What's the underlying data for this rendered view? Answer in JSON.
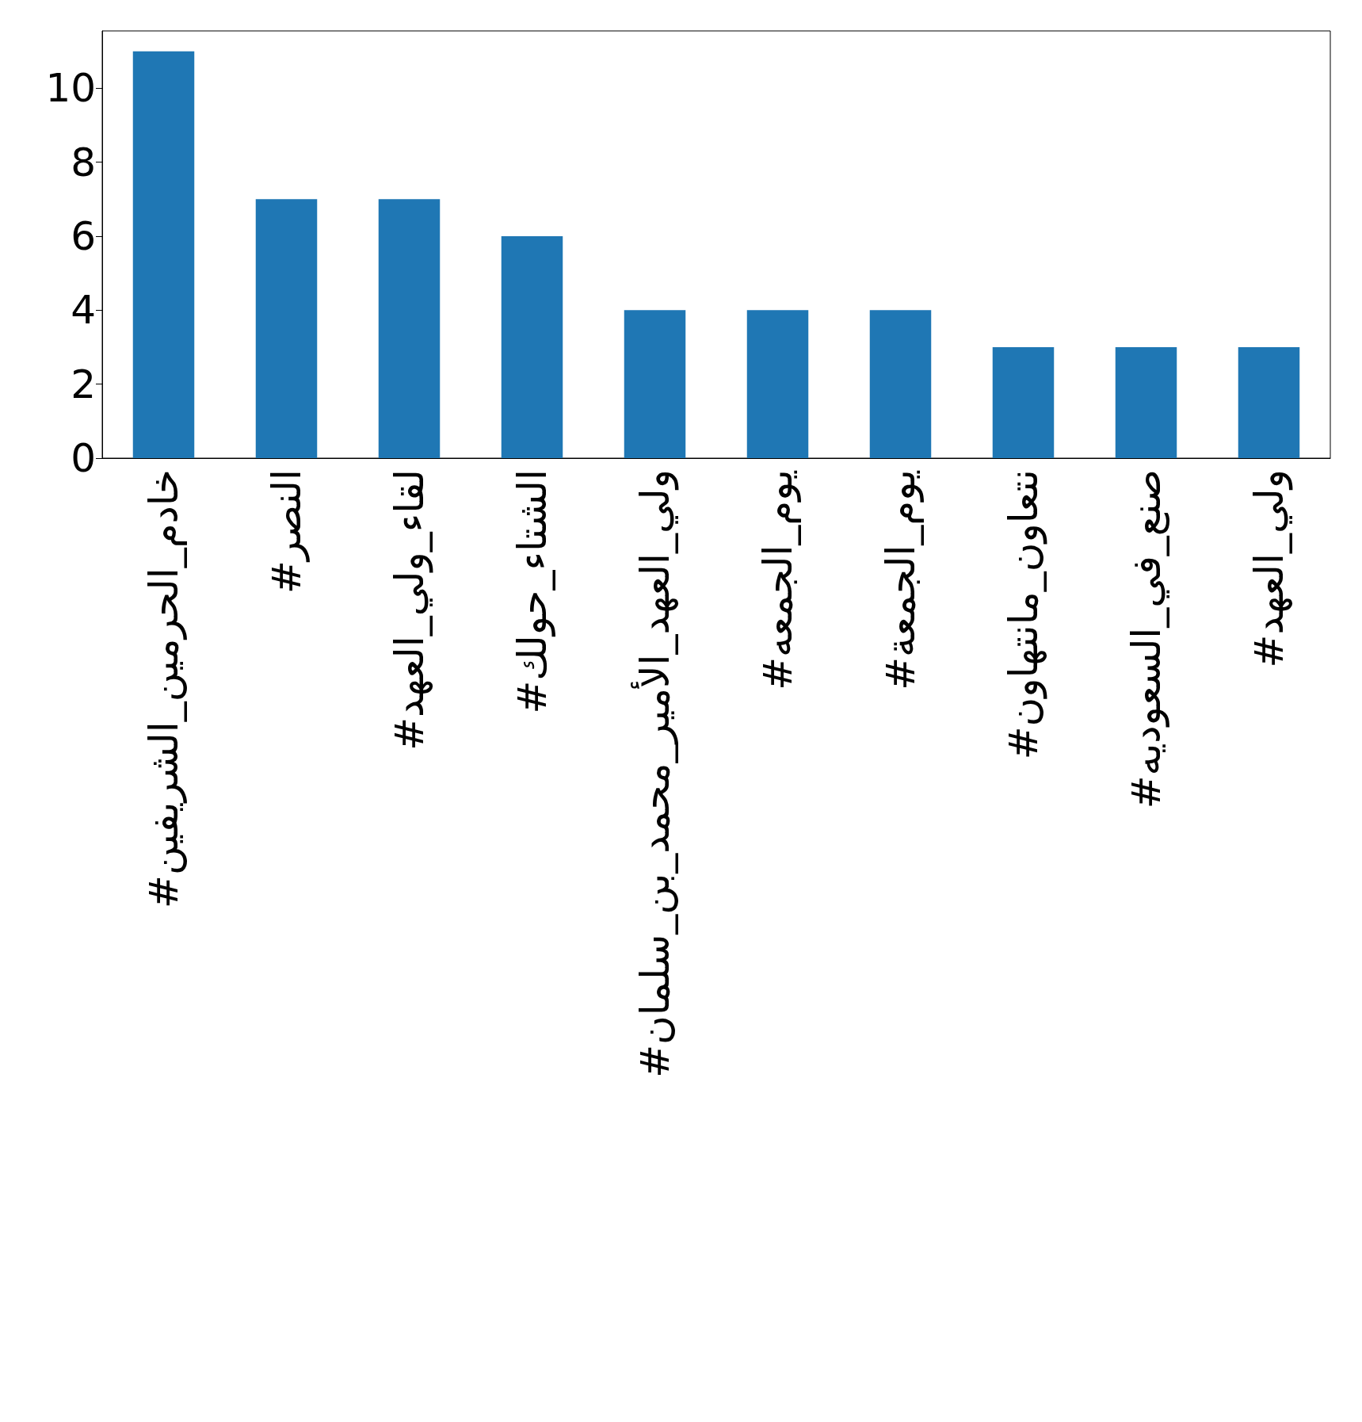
{
  "chart_data": {
    "type": "bar",
    "categories": [
      "#خادم_الحرمين_الشريفين",
      "#النصر",
      "#لقاء_ولي_العهد",
      "#الشتاء_حولك",
      "#ولي_العهد_الأمير_محمد_بن_سلمان",
      "#يوم_الجمعه",
      "#يوم_الجمعة",
      "#نتعاون_مانتهاون",
      "#صنع_في_السعوديه",
      "#ولي_العهد"
    ],
    "values": [
      11,
      7,
      7,
      6,
      4,
      4,
      4,
      3,
      3,
      3
    ],
    "color": "#1f77b4",
    "ylim": [
      0,
      11.55
    ],
    "yticks": [
      0,
      2,
      4,
      6,
      8,
      10
    ],
    "grid": false
  }
}
